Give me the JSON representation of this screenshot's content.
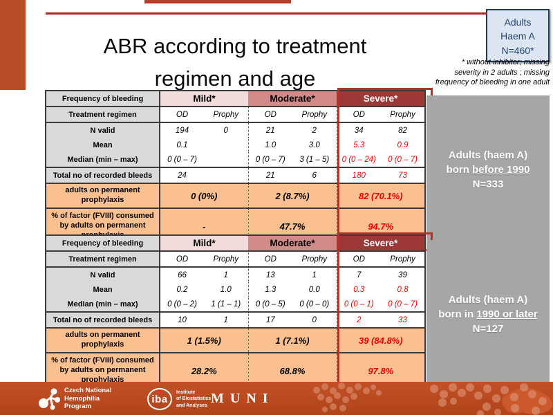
{
  "slide": {
    "title_line1": "ABR according to treatment",
    "title_line2": "regimen and age",
    "info_box": {
      "lines": [
        "Adults",
        "Haem A",
        "N=460*"
      ]
    },
    "footnote_lines": [
      "* without inhibitor; missing",
      "severity in 2 adults ; missing",
      "frequency of bleeding in one adult"
    ]
  },
  "colors": {
    "accent_line_red": "#b2241b",
    "left_accent_orange": "#b84b28",
    "mild_header_pink": "#f2dcdb",
    "moderate_header_rose": "#d28b89",
    "severe_header_darkred": "#9c3836",
    "severe_outline_red": "#ae352c",
    "orange_row": "#fac090",
    "label_gray": "#d9d9d9",
    "sidebar_gray": "#a6a6a6",
    "red_value_text": "#e60000",
    "info_box_bg": "#dce6f2",
    "info_box_border": "#1c3a5e",
    "footer_orange": "#bc4a21"
  },
  "tables": [
    {
      "freq_label": "Frequency of bleeding",
      "severities": [
        "Mild*",
        "Moderate*",
        "Severe*"
      ],
      "regimen_label": "Treatment regimen",
      "regimens": [
        "OD",
        "Prophy",
        "OD",
        "Prophy",
        "OD",
        "Prophy"
      ],
      "stat_rows": [
        {
          "label": "N valid",
          "values": [
            "194",
            "0",
            "21",
            "2",
            "34",
            "82"
          ],
          "red": []
        },
        {
          "label": "Mean",
          "values": [
            "0.1",
            "",
            "1.0",
            "3.0",
            "5.3",
            "0.9"
          ],
          "red": [
            4,
            5
          ]
        },
        {
          "label": "Median (min – max)",
          "values": [
            "0 (0 – 7)",
            "",
            "0 (0 – 7)",
            "3 (1 – 5)",
            "0 (0 – 24)",
            "0 (0 – 7)"
          ],
          "red": [
            4,
            5
          ]
        }
      ],
      "total_row": {
        "label": "Total no of recorded bleeds",
        "values": [
          "24",
          "",
          "21",
          "6",
          "180",
          "73"
        ],
        "red": [
          4,
          5
        ]
      },
      "orange_rows": [
        {
          "label": "adults on permanent prophylaxis",
          "values": [
            "0 (0%)",
            "2 (8.7%)",
            "82 (70.1%)"
          ],
          "red": [
            2
          ]
        },
        {
          "label": "% of factor (FVIII) consumed by adults on permanent prophylaxis",
          "values": [
            "-",
            "47.7%",
            "94.7%"
          ],
          "red": [
            2
          ]
        }
      ],
      "sidebar": {
        "line1": "Adults (haem A)",
        "line2_pre": "born ",
        "line2_underlined": "before 1990",
        "line3": "N=333"
      }
    },
    {
      "freq_label": "Frequency of bleeding",
      "severities": [
        "Mild*",
        "Moderate*",
        "Severe*"
      ],
      "regimen_label": "Treatment regimen",
      "regimens": [
        "OD",
        "Prophy",
        "OD",
        "Prophy",
        "OD",
        "Prophy"
      ],
      "stat_rows": [
        {
          "label": "N valid",
          "values": [
            "66",
            "1",
            "13",
            "1",
            "7",
            "39"
          ],
          "red": []
        },
        {
          "label": "Mean",
          "values": [
            "0.2",
            "1.0",
            "1.3",
            "0.0",
            "0.3",
            "0.8"
          ],
          "red": [
            4,
            5
          ]
        },
        {
          "label": "Median (min – max)",
          "values": [
            "0 (0 – 2)",
            "1 (1 – 1)",
            "0 (0 – 5)",
            "0 (0 – 0)",
            "0 (0 – 1)",
            "0 (0 – 7)"
          ],
          "red": [
            4,
            5
          ]
        }
      ],
      "total_row": {
        "label": "Total no of recorded bleeds",
        "values": [
          "10",
          "1",
          "17",
          "0",
          "2",
          "33"
        ],
        "red": [
          4,
          5
        ]
      },
      "orange_rows": [
        {
          "label": "adults on permanent prophylaxis",
          "values": [
            "1 (1.5%)",
            "1 (7.1%)",
            "39 (84.8%)"
          ],
          "red": [
            2
          ]
        },
        {
          "label": "% of factor (FVIII) consumed by adults on permanent prophylaxis",
          "values": [
            "28.2%",
            "68.8%",
            "97.8%"
          ],
          "red": [
            2
          ]
        }
      ],
      "sidebar": {
        "line1": "Adults (haem A)",
        "line2_pre": "born in ",
        "line2_underlined": "1990 or later",
        "line3": "N=127"
      }
    }
  ],
  "footer": {
    "cnhp": {
      "lines": [
        "Czech National",
        "Hemophilia",
        "Program"
      ]
    },
    "iba": {
      "abbr": "iba",
      "lines": [
        "Institute",
        "of Biostatistics",
        "and Analyses"
      ]
    },
    "muni": "MUNI"
  }
}
